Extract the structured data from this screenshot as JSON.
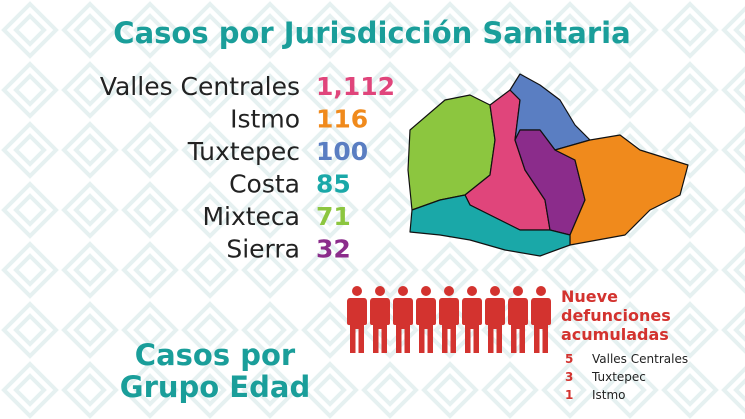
{
  "title": "Casos por Jurisdicción Sanitaria",
  "jurisdictions": [
    {
      "name": "Valles Centrales",
      "cases": "1,112",
      "color": "#e0457b"
    },
    {
      "name": "Istmo",
      "cases": "116",
      "color": "#f08a1c"
    },
    {
      "name": "Tuxtepec",
      "cases": "100",
      "color": "#5a7ec2"
    },
    {
      "name": "Costa",
      "cases": "85",
      "color": "#1aa8a8"
    },
    {
      "name": "Mixteca",
      "cases": "71",
      "color": "#8cc63f"
    },
    {
      "name": "Sierra",
      "cases": "32",
      "color": "#8b2c8b"
    }
  ],
  "deaths": {
    "heading": [
      "Nueve",
      "defunciones",
      "acumuladas"
    ],
    "rows": [
      {
        "count": "5",
        "name": "Valles Centrales"
      },
      {
        "count": "3",
        "name": "Tuxtepec"
      },
      {
        "count": "1",
        "name": "Istmo"
      }
    ]
  },
  "subtitle": [
    "Casos por",
    "Grupo Edad"
  ]
}
